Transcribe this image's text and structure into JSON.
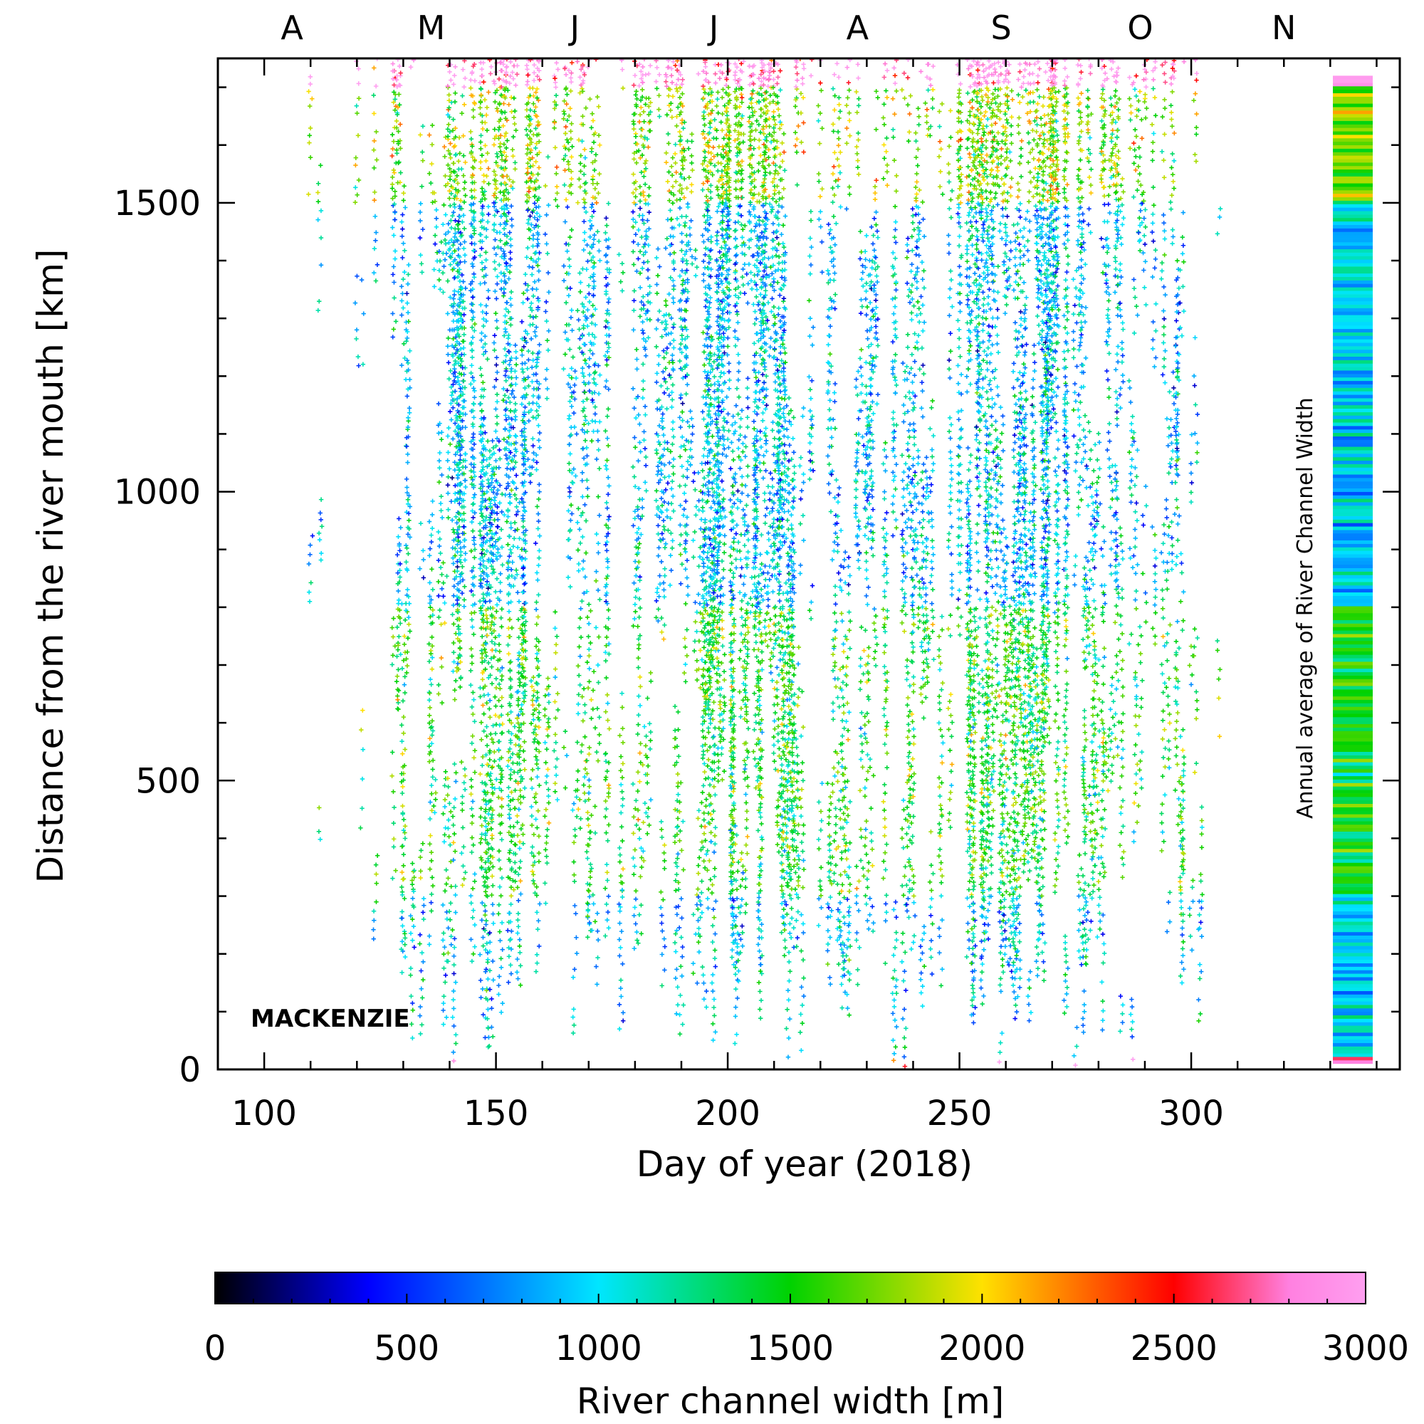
{
  "chart_data": {
    "type": "scatter",
    "title": "",
    "xlabel": "Day of year (2018)",
    "ylabel": "Distance from the river mouth [km]",
    "xlim": [
      90,
      345
    ],
    "ylim": [
      0,
      1750
    ],
    "x_ticks": [
      100,
      150,
      200,
      250,
      300
    ],
    "y_ticks": [
      0,
      500,
      1000,
      1500
    ],
    "months": [
      {
        "label": "A",
        "day": 106
      },
      {
        "label": "M",
        "day": 136
      },
      {
        "label": "J",
        "day": 167
      },
      {
        "label": "J",
        "day": 197
      },
      {
        "label": "A",
        "day": 228
      },
      {
        "label": "S",
        "day": 259
      },
      {
        "label": "O",
        "day": 289
      },
      {
        "label": "N",
        "day": 320
      }
    ],
    "annotation": "MACKENZIE",
    "side_bar_label": "Annual average of River Channel Width",
    "colorbar": {
      "label": "River channel width [m]",
      "min": 0,
      "max": 3000,
      "ticks": [
        0,
        500,
        1000,
        1500,
        2000,
        2500,
        3000
      ],
      "stops": [
        {
          "value": 0,
          "color": "#000000"
        },
        {
          "value": 400,
          "color": "#0000ff"
        },
        {
          "value": 1000,
          "color": "#00e6ff"
        },
        {
          "value": 1500,
          "color": "#00d200"
        },
        {
          "value": 2000,
          "color": "#ffe100"
        },
        {
          "value": 2500,
          "color": "#ff0000"
        },
        {
          "value": 2800,
          "color": "#ff80e0"
        },
        {
          "value": 3000,
          "color": "#ff9ff0"
        }
      ]
    },
    "observation_days": [
      110,
      112,
      120,
      121,
      124,
      128,
      129,
      130,
      131,
      132,
      134,
      136,
      137,
      138,
      139,
      140,
      141,
      142,
      143,
      145,
      147,
      148,
      149,
      150,
      151,
      152,
      153,
      154,
      155,
      156,
      157,
      158,
      159,
      161,
      163,
      165,
      166,
      167,
      168,
      169,
      170,
      171,
      172,
      174,
      177,
      180,
      181,
      182,
      183,
      185,
      186,
      187,
      188,
      189,
      190,
      191,
      192,
      193,
      194,
      195,
      196,
      197,
      198,
      199,
      200,
      201,
      202,
      203,
      204,
      205,
      206,
      207,
      208,
      209,
      210,
      211,
      212,
      213,
      214,
      215,
      216,
      218,
      220,
      222,
      223,
      224,
      225,
      226,
      228,
      229,
      230,
      231,
      232,
      234,
      236,
      238,
      239,
      240,
      241,
      242,
      243,
      244,
      246,
      248,
      250,
      252,
      253,
      254,
      255,
      256,
      257,
      258,
      259,
      260,
      261,
      262,
      263,
      264,
      265,
      266,
      267,
      268,
      269,
      270,
      271,
      273,
      275,
      276,
      277,
      278,
      279,
      280,
      281,
      282,
      283,
      284,
      285,
      287,
      288,
      289,
      290,
      292,
      294,
      295,
      296,
      297,
      298,
      300,
      301,
      302,
      306
    ],
    "density_profile": [
      {
        "start": 100,
        "end": 125,
        "density": 0.04
      },
      {
        "start": 125,
        "end": 140,
        "density": 0.35
      },
      {
        "start": 140,
        "end": 160,
        "density": 0.75
      },
      {
        "start": 160,
        "end": 175,
        "density": 0.45
      },
      {
        "start": 175,
        "end": 195,
        "density": 0.5
      },
      {
        "start": 195,
        "end": 215,
        "density": 0.8
      },
      {
        "start": 215,
        "end": 250,
        "density": 0.4
      },
      {
        "start": 250,
        "end": 275,
        "density": 0.85
      },
      {
        "start": 275,
        "end": 300,
        "density": 0.45
      },
      {
        "start": 300,
        "end": 310,
        "density": 0.05
      }
    ],
    "width_profile_by_distance": [
      {
        "from": 0,
        "to": 20,
        "mean_width": 2900
      },
      {
        "from": 20,
        "to": 300,
        "mean_width": 1000
      },
      {
        "from": 300,
        "to": 800,
        "mean_width": 1450
      },
      {
        "from": 800,
        "to": 1500,
        "mean_width": 950
      },
      {
        "from": 1500,
        "to": 1700,
        "mean_width": 1700
      },
      {
        "from": 1700,
        "to": 1750,
        "mean_width": 2950
      }
    ]
  }
}
